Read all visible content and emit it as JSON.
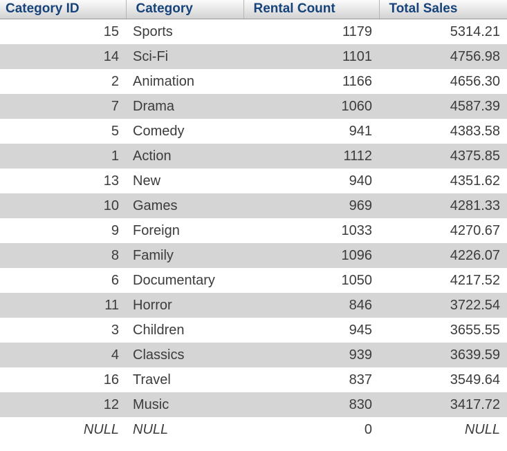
{
  "table": {
    "null_literal": "NULL",
    "columns": [
      {
        "label": "Category ID",
        "align": "right"
      },
      {
        "label": "Category",
        "align": "left"
      },
      {
        "label": "Rental Count",
        "align": "right"
      },
      {
        "label": "Total Sales",
        "align": "right"
      }
    ],
    "rows": [
      [
        "15",
        "Sports",
        "1179",
        "5314.21"
      ],
      [
        "14",
        "Sci-Fi",
        "1101",
        "4756.98"
      ],
      [
        "2",
        "Animation",
        "1166",
        "4656.30"
      ],
      [
        "7",
        "Drama",
        "1060",
        "4587.39"
      ],
      [
        "5",
        "Comedy",
        "941",
        "4383.58"
      ],
      [
        "1",
        "Action",
        "1112",
        "4375.85"
      ],
      [
        "13",
        "New",
        "940",
        "4351.62"
      ],
      [
        "10",
        "Games",
        "969",
        "4281.33"
      ],
      [
        "9",
        "Foreign",
        "1033",
        "4270.67"
      ],
      [
        "8",
        "Family",
        "1096",
        "4226.07"
      ],
      [
        "6",
        "Documentary",
        "1050",
        "4217.52"
      ],
      [
        "11",
        "Horror",
        "846",
        "3722.54"
      ],
      [
        "3",
        "Children",
        "945",
        "3655.55"
      ],
      [
        "4",
        "Classics",
        "939",
        "3639.59"
      ],
      [
        "16",
        "Travel",
        "837",
        "3549.64"
      ],
      [
        "12",
        "Music",
        "830",
        "3417.72"
      ],
      [
        "NULL",
        "NULL",
        "0",
        "NULL"
      ]
    ]
  },
  "colors": {
    "header_text": "#17437b",
    "header_gradient_top": "#fbfbfb",
    "header_gradient_bottom": "#d2d2d2",
    "row_stripe": "#d5d5d5",
    "body_text": "#3c3c3c",
    "null_text": "#a0a0a0"
  }
}
